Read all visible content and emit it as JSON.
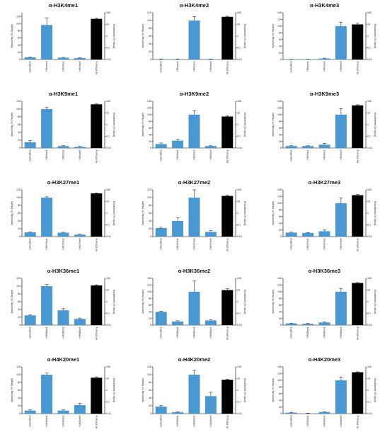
{
  "colors": {
    "specificity_bar": "#4a98d2",
    "efficiency_bar": "#000000",
    "axis": "#000000"
  },
  "chart_data": [
    {
      "type": "bar",
      "title": "α-H3K4me1",
      "ylabel": "Specificity (% Target)",
      "y2label": "Enrichment (% Input)",
      "ylim": [
        0,
        130
      ],
      "y_ticks": [
        "0",
        "20",
        "40",
        "60",
        "80",
        "100",
        "120"
      ],
      "y2lim_log": [
        0.01,
        100
      ],
      "y2_ticks": [
        "0.01",
        "0.1",
        "1",
        "10",
        "100"
      ],
      "categories": [
        "Unmodified",
        "H3K4me1",
        "H3K4me2",
        "H3K4me3",
        "Ab Efficiency"
      ],
      "values": [
        6,
        96,
        5,
        4,
        null
      ],
      "errors": [
        1,
        20,
        1,
        1,
        null
      ],
      "efficiency_value": 30,
      "efficiency_error": 5
    },
    {
      "type": "bar",
      "title": "α-H3K4me2",
      "ylabel": "Specificity (% Target)",
      "y2label": "Enrichment (% Input)",
      "ylim": [
        0,
        120
      ],
      "y_ticks": [
        "0",
        "20",
        "40",
        "60",
        "80",
        "100",
        "120"
      ],
      "y2lim_log": [
        0.01,
        100
      ],
      "y2_ticks": [
        "0.01",
        "0.1",
        "1",
        "10",
        "100"
      ],
      "categories": [
        "Unmodified",
        "H3K4me1",
        "H3K4me2",
        "H3K4me3",
        "Ab Efficiency"
      ],
      "values": [
        1,
        1,
        100,
        1,
        null
      ],
      "errors": [
        0.5,
        0.5,
        10,
        0.5,
        null
      ],
      "efficiency_value": 45,
      "efficiency_error": 5
    },
    {
      "type": "bar",
      "title": "α-H3K4me3",
      "ylabel": "Specificity (% Target)",
      "y2label": "Enrichment (% Input)",
      "ylim": [
        0,
        140
      ],
      "y_ticks": [
        "0",
        "20",
        "40",
        "60",
        "80",
        "100",
        "120",
        "140"
      ],
      "y2lim_log": [
        0.01,
        100
      ],
      "y2_ticks": [
        "0.01",
        "0.1",
        "1",
        "10",
        "100"
      ],
      "categories": [
        "Unmodified",
        "H3K4me1",
        "H3K4me2",
        "H3K4me3",
        "Ab Efficiency"
      ],
      "values": [
        0.5,
        0.5,
        3,
        100,
        null
      ],
      "errors": [
        0.3,
        0.3,
        1,
        12,
        null
      ],
      "efficiency_value": 10,
      "efficiency_error": 3
    },
    {
      "type": "bar",
      "title": "α-H3K9me1",
      "ylabel": "Specificity (% Target)",
      "y2label": "Enrichment (% Input)",
      "ylim": [
        0,
        120
      ],
      "y_ticks": [
        "0",
        "20",
        "40",
        "60",
        "80",
        "100",
        "120"
      ],
      "y2lim_log": [
        0.01,
        100
      ],
      "y2_ticks": [
        "0.01",
        "0.1",
        "1",
        "10",
        "100"
      ],
      "categories": [
        "Unmodified",
        "H3K9me1",
        "H3K9me2",
        "H3K9me3",
        "Ab Efficiency"
      ],
      "values": [
        15,
        100,
        5,
        3,
        null
      ],
      "errors": [
        4,
        4,
        1,
        1,
        null
      ],
      "efficiency_value": 55,
      "efficiency_error": 5
    },
    {
      "type": "bar",
      "title": "α-H3K9me2",
      "ylabel": "Specificity (% Target)",
      "y2label": "Enrichment (% Input)",
      "ylim": [
        0,
        140
      ],
      "y_ticks": [
        "0",
        "20",
        "40",
        "60",
        "80",
        "100",
        "120",
        "140"
      ],
      "y2lim_log": [
        0.01,
        100
      ],
      "y2_ticks": [
        "0.01",
        "0.1",
        "1",
        "10",
        "100"
      ],
      "categories": [
        "Unmodified",
        "H3K9me1",
        "H3K9me2",
        "H3K9me3",
        "Ab Efficiency"
      ],
      "values": [
        12,
        22,
        100,
        6,
        null
      ],
      "errors": [
        3,
        4,
        12,
        1,
        null
      ],
      "efficiency_value": 5,
      "efficiency_error": 1
    },
    {
      "type": "bar",
      "title": "α-H3K9me3",
      "ylabel": "Specificity (% Target)",
      "y2label": "Enrichment (% Input)",
      "ylim": [
        0,
        140
      ],
      "y_ticks": [
        "0",
        "20",
        "40",
        "60",
        "80",
        "100",
        "120",
        "140"
      ],
      "y2lim_log": [
        0.01,
        100
      ],
      "y2_ticks": [
        "0.01",
        "0.1",
        "1",
        "10",
        "100"
      ],
      "categories": [
        "Unmodified",
        "H3K9me1",
        "H3K9me2",
        "H3K9me3",
        "Ab Efficiency"
      ],
      "values": [
        6,
        6,
        10,
        100,
        null
      ],
      "errors": [
        1,
        1,
        4,
        18,
        null
      ],
      "efficiency_value": 45,
      "efficiency_error": 5
    },
    {
      "type": "bar",
      "title": "α-H3K27me1",
      "ylabel": "Specificity (% Target)",
      "y2label": "Enrichment (% Input)",
      "ylim": [
        0,
        120
      ],
      "y_ticks": [
        "0",
        "20",
        "40",
        "60",
        "80",
        "100",
        "120"
      ],
      "y2lim_log": [
        0.01,
        100
      ],
      "y2_ticks": [
        "0.01",
        "0.1",
        "1",
        "10",
        "100"
      ],
      "categories": [
        "Unmodified",
        "H3K27me1",
        "H3K27me2",
        "H3K27me3",
        "Ab Efficiency"
      ],
      "values": [
        11,
        100,
        10,
        5,
        null
      ],
      "errors": [
        1,
        2,
        1,
        1,
        null
      ],
      "efficiency_value": 50,
      "efficiency_error": 5
    },
    {
      "type": "bar",
      "title": "α-H3K27me2",
      "ylabel": "Specificity (% Target)",
      "y2label": "Enrichment (% Input)",
      "ylim": [
        0,
        120
      ],
      "y_ticks": [
        "0",
        "20",
        "40",
        "60",
        "80",
        "100",
        "120"
      ],
      "y2lim_log": [
        0.01,
        100
      ],
      "y2_ticks": [
        "0.01",
        "0.1",
        "1",
        "10",
        "100"
      ],
      "categories": [
        "Unmodified",
        "H3K27me1",
        "H3K27me2",
        "H3K27me3",
        "Ab Efficiency"
      ],
      "values": [
        22,
        40,
        100,
        12,
        null
      ],
      "errors": [
        2,
        8,
        20,
        3,
        null
      ],
      "efficiency_value": 30,
      "efficiency_error": 5
    },
    {
      "type": "bar",
      "title": "α-H3K27me3",
      "ylabel": "Specificity (% Target)",
      "y2label": "Enrichment (% Input)",
      "ylim": [
        0,
        140
      ],
      "y_ticks": [
        "0",
        "20",
        "40",
        "60",
        "80",
        "100",
        "120",
        "140"
      ],
      "y2lim_log": [
        0.01,
        100
      ],
      "y2_ticks": [
        "0.01",
        "0.1",
        "1",
        "10",
        "100"
      ],
      "categories": [
        "Unmodified",
        "H3K27me1",
        "H3K27me2",
        "H3K27me3",
        "Ab Efficiency"
      ],
      "values": [
        12,
        11,
        16,
        100,
        null
      ],
      "errors": [
        1,
        1,
        4,
        15,
        null
      ],
      "efficiency_value": 35,
      "efficiency_error": 5
    },
    {
      "type": "bar",
      "title": "α-H3K36me1",
      "ylabel": "Specificity (% Target)",
      "y2label": "Enrichment (% Input)",
      "ylim": [
        0,
        120
      ],
      "y_ticks": [
        "0",
        "20",
        "40",
        "60",
        "80",
        "100",
        "120"
      ],
      "y2lim_log": [
        0.01,
        100
      ],
      "y2_ticks": [
        "0.01",
        "0.1",
        "1",
        "10",
        "100"
      ],
      "categories": [
        "Unmodified",
        "H3K36me1",
        "H3K36me2",
        "H3K36me3",
        "Ab Efficiency"
      ],
      "values": [
        25,
        100,
        38,
        16,
        null
      ],
      "errors": [
        2,
        4,
        4,
        2,
        null
      ],
      "efficiency_value": 25,
      "efficiency_error": 3
    },
    {
      "type": "bar",
      "title": "α-H3K36me2",
      "ylabel": "Specificity (% Target)",
      "y2label": "Enrichment (% Input)",
      "ylim": [
        0,
        140
      ],
      "y_ticks": [
        "0",
        "20",
        "40",
        "60",
        "80",
        "100",
        "120",
        "140"
      ],
      "y2lim_log": [
        0.01,
        100
      ],
      "y2_ticks": [
        "0.01",
        "0.1",
        "1",
        "10",
        "100"
      ],
      "categories": [
        "Unmodified",
        "H3K36me1",
        "H3K36me2",
        "H3K36me3",
        "Ab Efficiency"
      ],
      "values": [
        40,
        11,
        100,
        14,
        null
      ],
      "errors": [
        1,
        2,
        32,
        2,
        null
      ],
      "efficiency_value": 10,
      "efficiency_error": 3
    },
    {
      "type": "bar",
      "title": "α-H3K36me3",
      "ylabel": "Specificity (% Target)",
      "y2label": "Enrichment (% Input)",
      "ylim": [
        0,
        140
      ],
      "y_ticks": [
        "0",
        "20",
        "40",
        "60",
        "80",
        "100",
        "120",
        "140"
      ],
      "y2lim_log": [
        0.01,
        100
      ],
      "y2_ticks": [
        "0.01",
        "0.1",
        "1",
        "10",
        "100"
      ],
      "categories": [
        "Unmodified",
        "H3K36me1",
        "H3K36me2",
        "H3K36me3",
        "Ab Efficiency"
      ],
      "values": [
        5,
        4,
        8,
        100,
        null
      ],
      "errors": [
        1,
        1,
        2,
        10,
        null
      ],
      "efficiency_value": 40,
      "efficiency_error": 4
    },
    {
      "type": "bar",
      "title": "α-H4K20me1",
      "ylabel": "Specificity (% Target)",
      "y2label": "Enrichment (% Input)",
      "ylim": [
        0,
        120
      ],
      "y_ticks": [
        "0",
        "20",
        "40",
        "60",
        "80",
        "100",
        "120"
      ],
      "y2lim_log": [
        0.01,
        100
      ],
      "y2_ticks": [
        "0.01",
        "0.1",
        "1",
        "10",
        "100"
      ],
      "categories": [
        "Unmodified",
        "H4K20me1",
        "H4K20me2",
        "H4K20me3",
        "Ab Efficiency"
      ],
      "values": [
        8,
        100,
        8,
        22,
        null
      ],
      "errors": [
        2,
        4,
        2,
        5,
        null
      ],
      "efficiency_value": 12,
      "efficiency_error": 2
    },
    {
      "type": "bar",
      "title": "α-H4K20me2",
      "ylabel": "Specificity (% Target)",
      "y2label": "Enrichment (% Input)",
      "ylim": [
        0,
        120
      ],
      "y_ticks": [
        "0",
        "20",
        "40",
        "60",
        "80",
        "100",
        "120"
      ],
      "y2lim_log": [
        0.01,
        100
      ],
      "y2_ticks": [
        "0.01",
        "0.1",
        "1",
        "10",
        "100"
      ],
      "categories": [
        "Unmodified",
        "H4K20me1",
        "H4K20me2",
        "H4K20me3",
        "Ab Efficiency"
      ],
      "values": [
        18,
        4,
        100,
        45,
        null
      ],
      "errors": [
        3,
        1,
        12,
        10,
        null
      ],
      "efficiency_value": 8,
      "efficiency_error": 1
    },
    {
      "type": "bar",
      "title": "α-H4K20me3",
      "ylabel": "Specificity (% Target)",
      "y2label": "Enrichment (% Input)",
      "ylim": [
        0,
        140
      ],
      "y_ticks": [
        "0",
        "20",
        "40",
        "60",
        "80",
        "100",
        "120",
        "140"
      ],
      "y2lim_log": [
        0.01,
        100
      ],
      "y2_ticks": [
        "0.01",
        "0.1",
        "1",
        "10",
        "100"
      ],
      "categories": [
        "Unmodified",
        "H4K20me1",
        "H4K20me2",
        "H4K20me3",
        "Ab Efficiency"
      ],
      "values": [
        3,
        1,
        5,
        100,
        null
      ],
      "errors": [
        1,
        0.5,
        1,
        10,
        null
      ],
      "efficiency_value": 35,
      "efficiency_error": 3
    }
  ]
}
